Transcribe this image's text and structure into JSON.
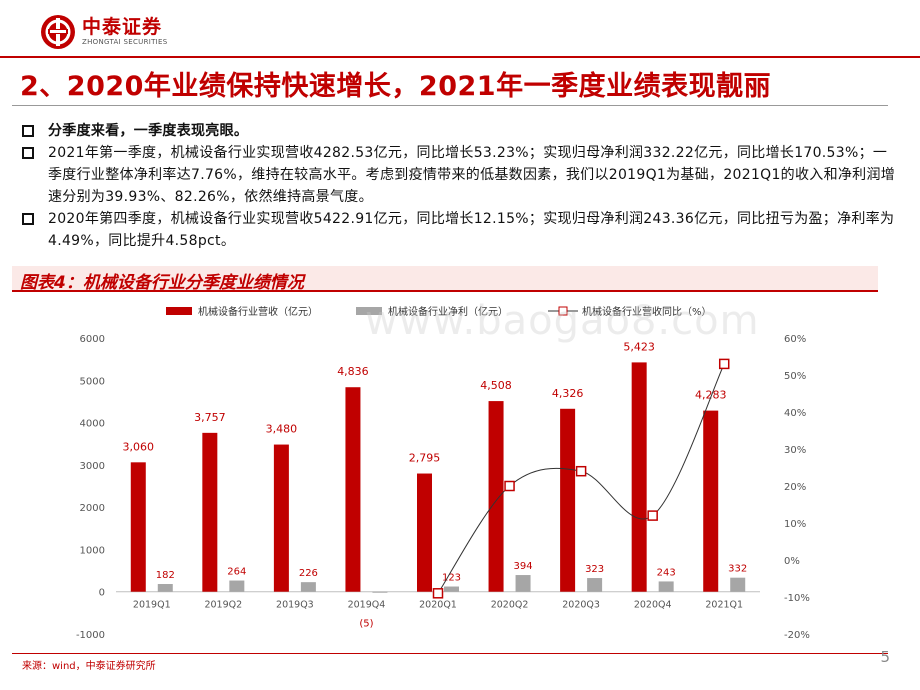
{
  "header": {
    "logo_cn": "中泰证券",
    "logo_en": "ZHONGTAI SECURITIES"
  },
  "title": "2、2020年业绩保持快速增长，2021年一季度业绩表现靓丽",
  "bullets": [
    "分季度来看，一季度表现亮眼。",
    "2021年第一季度，机械设备行业实现营收4282.53亿元，同比增长53.23%；实现归母净利润332.22亿元，同比增长170.53%；一季度行业整体净利率达7.76%，维持在较高水平。考虑到疫情带来的低基数因素，我们以2019Q1为基础，2021Q1的收入和净利润增速分别为39.93%、82.26%，依然维持高景气度。",
    "2020年第四季度，机械设备行业实现营收5422.91亿元，同比增长12.15%；实现归母净利润243.36亿元，同比扭亏为盈；净利率为4.49%，同比提升4.58pct。"
  ],
  "figure_title": "图表4：机械设备行业分季度业绩情况",
  "chart_data": {
    "type": "bar",
    "categories": [
      "2019Q1",
      "2019Q2",
      "2019Q3",
      "2019Q4",
      "2020Q1",
      "2020Q2",
      "2020Q3",
      "2020Q4",
      "2021Q1"
    ],
    "series": [
      {
        "name": "机械设备行业营收（亿元）",
        "kind": "bar",
        "axis": "left",
        "color": "#c00000",
        "values": [
          3060,
          3757,
          3480,
          4836,
          2795,
          4508,
          4326,
          5423,
          4283
        ],
        "labels": [
          "3,060",
          "3,757",
          "3,480",
          "4,836",
          "2,795",
          "4,508",
          "4,326",
          "5,423",
          "4,283"
        ]
      },
      {
        "name": "机械设备行业净利（亿元）",
        "kind": "bar",
        "axis": "left",
        "color": "#a6a6a6",
        "values": [
          182,
          264,
          226,
          -5,
          123,
          394,
          323,
          243,
          332
        ],
        "labels": [
          "182",
          "264",
          "226",
          "(5)",
          "123",
          "394",
          "323",
          "243",
          "332"
        ]
      },
      {
        "name": "机械设备行业营收同比（%）",
        "kind": "line",
        "axis": "right",
        "color": "#c00000",
        "x": [
          "2020Q1",
          "2020Q2",
          "2020Q3",
          "2020Q4",
          "2021Q1"
        ],
        "values": [
          -9,
          20,
          24,
          12,
          53
        ]
      }
    ],
    "y_left": {
      "min": -1000,
      "max": 6000,
      "ticks": [
        6000,
        5000,
        4000,
        3000,
        2000,
        1000,
        0,
        -1000
      ]
    },
    "y_right": {
      "min": -20,
      "max": 60,
      "ticks": [
        "60%",
        "50%",
        "40%",
        "30%",
        "20%",
        "10%",
        "0%",
        "-10%",
        "-20%"
      ]
    },
    "legend": "top",
    "grid": false
  },
  "watermark": "www.baogao8.com",
  "source": "来源：wind，中泰证券研究所",
  "page_number": "5",
  "colors": {
    "brand": "#c00000",
    "gray": "#a6a6a6"
  }
}
